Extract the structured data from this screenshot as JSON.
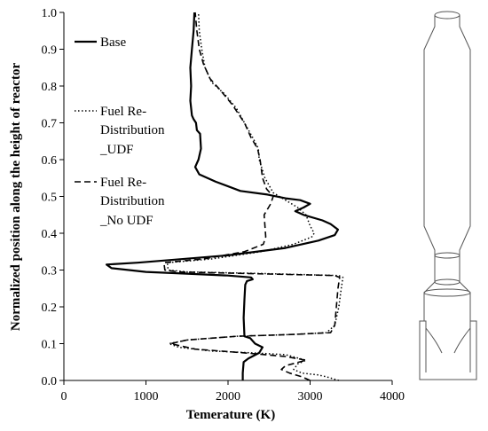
{
  "chart_data": {
    "type": "line",
    "xlabel": "Temerature (K)",
    "ylabel": "Normalized position along the height of reactor",
    "xlim": [
      0,
      4000
    ],
    "ylim": [
      0.0,
      1.0
    ],
    "x_ticks": [
      "0",
      "1000",
      "2000",
      "3000",
      "4000"
    ],
    "y_ticks": [
      "0.0",
      "0.1",
      "0.2",
      "0.3",
      "0.4",
      "0.5",
      "0.6",
      "0.7",
      "0.8",
      "0.9",
      "1.0"
    ],
    "grid": false,
    "legend_position": "left, inside plot",
    "series": [
      {
        "name": "Base",
        "style": "solid",
        "points": [
          [
            2180,
            0.0
          ],
          [
            2180,
            0.02
          ],
          [
            2190,
            0.05
          ],
          [
            2250,
            0.06
          ],
          [
            2380,
            0.075
          ],
          [
            2420,
            0.09
          ],
          [
            2330,
            0.1
          ],
          [
            2270,
            0.115
          ],
          [
            2200,
            0.12
          ],
          [
            2190,
            0.17
          ],
          [
            2200,
            0.22
          ],
          [
            2210,
            0.26
          ],
          [
            2230,
            0.27
          ],
          [
            2300,
            0.275
          ],
          [
            2280,
            0.28
          ],
          [
            2000,
            0.285
          ],
          [
            1500,
            0.29
          ],
          [
            1000,
            0.295
          ],
          [
            580,
            0.305
          ],
          [
            520,
            0.315
          ],
          [
            900,
            0.32
          ],
          [
            2000,
            0.34
          ],
          [
            2700,
            0.36
          ],
          [
            3100,
            0.38
          ],
          [
            3300,
            0.395
          ],
          [
            3340,
            0.41
          ],
          [
            3250,
            0.425
          ],
          [
            3150,
            0.435
          ],
          [
            2920,
            0.45
          ],
          [
            2820,
            0.46
          ],
          [
            2920,
            0.47
          ],
          [
            3000,
            0.48
          ],
          [
            2880,
            0.49
          ],
          [
            2700,
            0.495
          ],
          [
            2480,
            0.505
          ],
          [
            2150,
            0.515
          ],
          [
            1850,
            0.54
          ],
          [
            1650,
            0.56
          ],
          [
            1600,
            0.58
          ],
          [
            1640,
            0.6
          ],
          [
            1670,
            0.63
          ],
          [
            1660,
            0.67
          ],
          [
            1620,
            0.68
          ],
          [
            1610,
            0.7
          ],
          [
            1580,
            0.71
          ],
          [
            1560,
            0.72
          ],
          [
            1540,
            0.76
          ],
          [
            1550,
            0.8
          ],
          [
            1540,
            0.85
          ],
          [
            1560,
            0.9
          ],
          [
            1580,
            0.95
          ],
          [
            1590,
            1.0
          ]
        ]
      },
      {
        "name": "Fuel Re-Distribution_UDF",
        "style": "dotted",
        "points": [
          [
            3350,
            0.0
          ],
          [
            3200,
            0.01
          ],
          [
            3100,
            0.015
          ],
          [
            2900,
            0.02
          ],
          [
            2800,
            0.03
          ],
          [
            2850,
            0.045
          ],
          [
            2950,
            0.055
          ],
          [
            2700,
            0.07
          ],
          [
            2300,
            0.075
          ],
          [
            1800,
            0.08
          ],
          [
            1400,
            0.09
          ],
          [
            1280,
            0.1
          ],
          [
            1500,
            0.11
          ],
          [
            2100,
            0.12
          ],
          [
            2800,
            0.125
          ],
          [
            3200,
            0.13
          ],
          [
            3300,
            0.15
          ],
          [
            3350,
            0.2
          ],
          [
            3380,
            0.25
          ],
          [
            3400,
            0.28
          ],
          [
            3350,
            0.285
          ],
          [
            2500,
            0.29
          ],
          [
            1500,
            0.295
          ],
          [
            1270,
            0.3
          ],
          [
            1260,
            0.32
          ],
          [
            1800,
            0.33
          ],
          [
            2400,
            0.35
          ],
          [
            2800,
            0.37
          ],
          [
            3020,
            0.39
          ],
          [
            3050,
            0.4
          ],
          [
            3000,
            0.42
          ],
          [
            2950,
            0.45
          ],
          [
            2850,
            0.47
          ],
          [
            2700,
            0.49
          ],
          [
            2550,
            0.51
          ],
          [
            2450,
            0.55
          ],
          [
            2380,
            0.6
          ],
          [
            2370,
            0.63
          ],
          [
            2300,
            0.66
          ],
          [
            2200,
            0.7
          ],
          [
            2100,
            0.74
          ],
          [
            1950,
            0.78
          ],
          [
            1800,
            0.81
          ],
          [
            1720,
            0.85
          ],
          [
            1680,
            0.9
          ],
          [
            1650,
            0.95
          ],
          [
            1640,
            1.0
          ]
        ]
      },
      {
        "name": "Fuel Re-Distribution_No UDF",
        "style": "dashed",
        "points": [
          [
            3000,
            0.0
          ],
          [
            2900,
            0.01
          ],
          [
            2750,
            0.02
          ],
          [
            2650,
            0.03
          ],
          [
            2700,
            0.04
          ],
          [
            2950,
            0.055
          ],
          [
            2700,
            0.065
          ],
          [
            2200,
            0.075
          ],
          [
            1600,
            0.085
          ],
          [
            1300,
            0.1
          ],
          [
            1500,
            0.11
          ],
          [
            2100,
            0.12
          ],
          [
            2800,
            0.125
          ],
          [
            3250,
            0.13
          ],
          [
            3300,
            0.15
          ],
          [
            3320,
            0.2
          ],
          [
            3340,
            0.25
          ],
          [
            3360,
            0.28
          ],
          [
            3300,
            0.285
          ],
          [
            2300,
            0.29
          ],
          [
            1400,
            0.295
          ],
          [
            1230,
            0.3
          ],
          [
            1220,
            0.32
          ],
          [
            1700,
            0.33
          ],
          [
            2200,
            0.35
          ],
          [
            2430,
            0.37
          ],
          [
            2460,
            0.39
          ],
          [
            2450,
            0.42
          ],
          [
            2440,
            0.45
          ],
          [
            2520,
            0.48
          ],
          [
            2550,
            0.5
          ],
          [
            2470,
            0.52
          ],
          [
            2420,
            0.55
          ],
          [
            2390,
            0.6
          ],
          [
            2360,
            0.63
          ],
          [
            2280,
            0.66
          ],
          [
            2200,
            0.7
          ],
          [
            2050,
            0.75
          ],
          [
            1900,
            0.79
          ],
          [
            1780,
            0.82
          ],
          [
            1700,
            0.86
          ],
          [
            1650,
            0.9
          ],
          [
            1620,
            0.95
          ],
          [
            1600,
            1.0
          ]
        ]
      }
    ]
  },
  "legend": {
    "base": "Base",
    "udf_line1": "Fuel Re-",
    "udf_line2": "Distribution",
    "udf_line3": "_UDF",
    "noudf_line1": "Fuel Re-",
    "noudf_line2": "Distribution",
    "noudf_line3": "_No UDF"
  },
  "reactor_sketch": {
    "description_icon": "reactor-schematic"
  }
}
